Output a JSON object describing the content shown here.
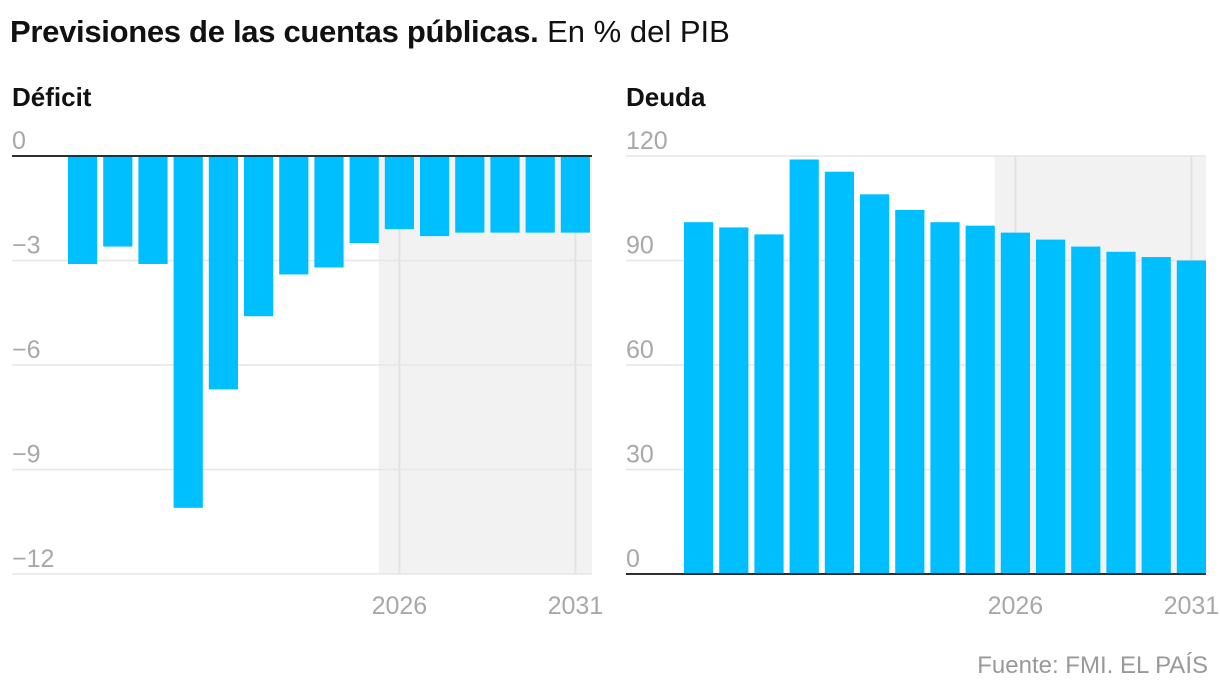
{
  "title": {
    "bold": "Previsiones de las cuentas públicas.",
    "light": "En % del PIB"
  },
  "source": "Fuente: FMI. EL PAÍS",
  "colors": {
    "bar": "#00bfff",
    "forecast_shade": "#f2f2f2",
    "grid": "#e6e6e6",
    "axis": "#111111",
    "tick_text": "#a8a8a8"
  },
  "chart_data": [
    {
      "type": "bar",
      "title": "Déficit",
      "xlabel": "",
      "ylabel": "",
      "x": [
        2017,
        2018,
        2019,
        2020,
        2021,
        2022,
        2023,
        2024,
        2025,
        2026,
        2027,
        2028,
        2029,
        2030,
        2031
      ],
      "values": [
        -3.1,
        -2.6,
        -3.1,
        -10.1,
        -6.7,
        -4.6,
        -3.4,
        -3.2,
        -2.5,
        -2.1,
        -2.3,
        -2.2,
        -2.2,
        -2.2,
        -2.2
      ],
      "ylim": [
        -12,
        0
      ],
      "yticks": [
        0,
        -3,
        -6,
        -9,
        -12
      ],
      "ytick_labels": [
        "0",
        "−3",
        "−6",
        "−9",
        "−12"
      ],
      "xtick_labels": [
        {
          "x": 2026,
          "label": "2026"
        },
        {
          "x": 2031,
          "label": "2031"
        }
      ],
      "forecast_from": 2026,
      "grid": true
    },
    {
      "type": "bar",
      "title": "Deuda",
      "xlabel": "",
      "ylabel": "",
      "x": [
        2017,
        2018,
        2019,
        2020,
        2021,
        2022,
        2023,
        2024,
        2025,
        2026,
        2027,
        2028,
        2029,
        2030,
        2031
      ],
      "values": [
        101,
        99.5,
        97.5,
        119,
        115.5,
        109,
        104.5,
        101,
        100,
        98,
        96,
        94,
        92.5,
        91,
        90
      ],
      "ylim": [
        0,
        120
      ],
      "yticks": [
        120,
        90,
        60,
        30,
        0
      ],
      "ytick_labels": [
        "120",
        "90",
        "60",
        "30",
        "0"
      ],
      "xtick_labels": [
        {
          "x": 2026,
          "label": "2026"
        },
        {
          "x": 2031,
          "label": "2031"
        }
      ],
      "forecast_from": 2026,
      "grid": true
    }
  ]
}
